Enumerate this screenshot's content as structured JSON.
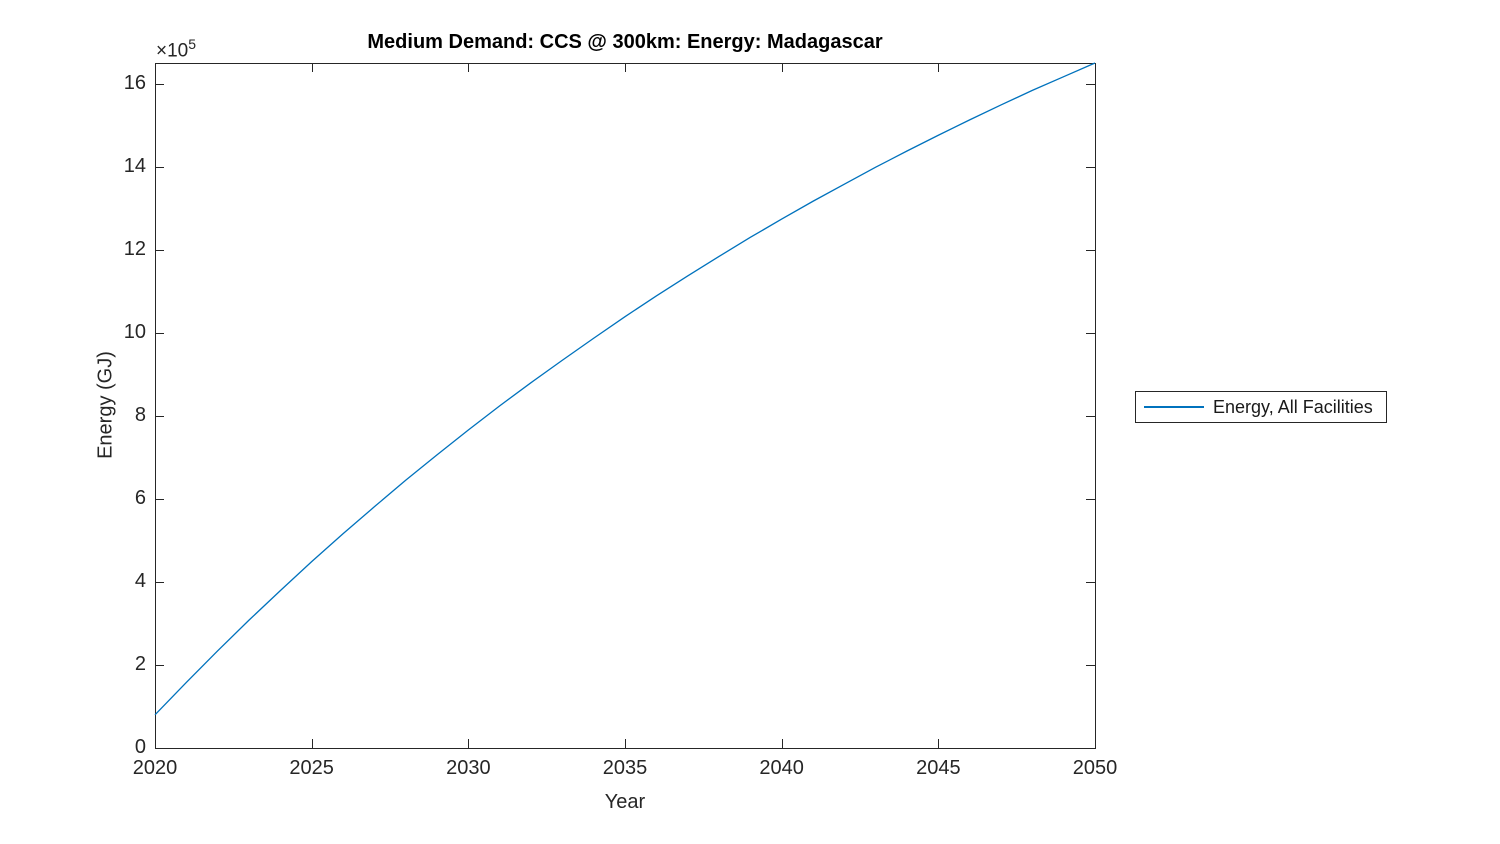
{
  "figure": {
    "title": "Medium Demand: CCS @ 300km: Energy: Madagascar",
    "xlabel": "Year",
    "ylabel": "Energy (GJ)",
    "y_axis_multiplier_base": "×10",
    "y_axis_multiplier_exponent": "5"
  },
  "legend": {
    "label": "Energy, All Facilities"
  },
  "colors": {
    "line": "#0072BD",
    "axis": "#262626",
    "background": "#ffffff"
  },
  "chart_data": {
    "type": "line",
    "title": "Medium Demand: CCS @ 300km: Energy: Madagascar",
    "xlabel": "Year",
    "ylabel": "Energy (GJ)",
    "grid": false,
    "legend_position": "outside-right",
    "xlim": [
      2020,
      2050
    ],
    "ylim": [
      0,
      1650000
    ],
    "xticks": [
      2020,
      2025,
      2030,
      2035,
      2040,
      2045,
      2050
    ],
    "yticks": [
      0,
      200000,
      400000,
      600000,
      800000,
      1000000,
      1200000,
      1400000,
      1600000
    ],
    "ytick_labels": [
      "0",
      "2",
      "4",
      "6",
      "8",
      "10",
      "12",
      "14",
      "16"
    ],
    "ytick_scale_label": "×10^5",
    "x": [
      2020,
      2021,
      2022,
      2023,
      2024,
      2025,
      2026,
      2027,
      2028,
      2029,
      2030,
      2031,
      2032,
      2033,
      2034,
      2035,
      2036,
      2037,
      2038,
      2039,
      2040,
      2041,
      2042,
      2043,
      2044,
      2045,
      2046,
      2047,
      2048,
      2049,
      2050
    ],
    "series": [
      {
        "name": "Energy, All Facilities",
        "color": "#0072BD",
        "values": [
          80000,
          158000,
          234000,
          308000,
          379000,
          449000,
          516000,
          581000,
          645000,
          706000,
          766000,
          824000,
          880000,
          934000,
          987000,
          1039000,
          1089000,
          1137000,
          1184000,
          1230000,
          1274000,
          1317000,
          1358000,
          1399000,
          1438000,
          1476000,
          1513000,
          1549000,
          1584000,
          1617000,
          1650000
        ]
      }
    ]
  }
}
